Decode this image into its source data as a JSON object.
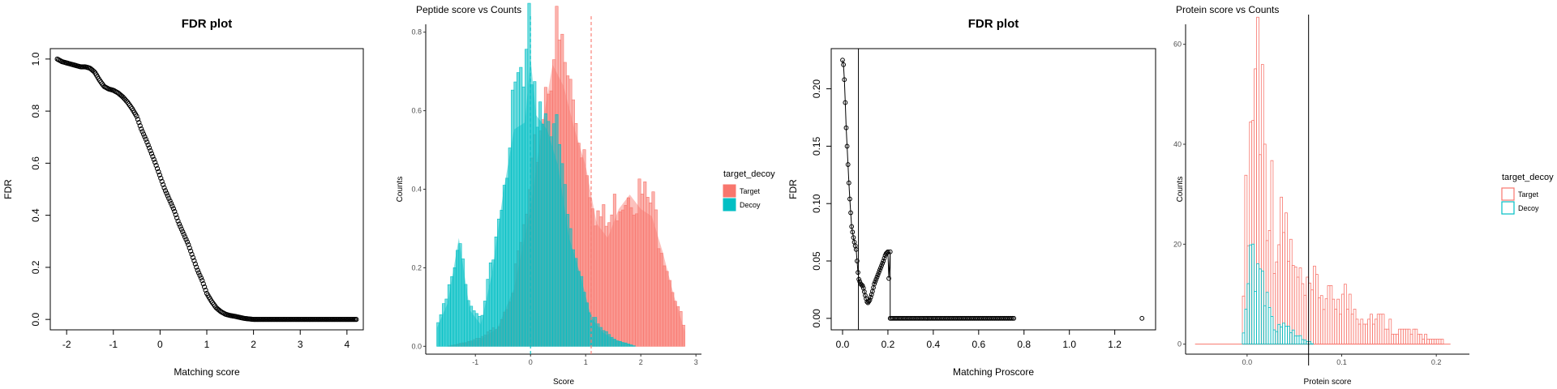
{
  "colors": {
    "target": "#F8766D",
    "decoy": "#00BFC4",
    "axis": "#000000",
    "grey": "#4d4d4d"
  },
  "chart_data": [
    {
      "id": "fdr1",
      "type": "scatter",
      "title": "FDR plot",
      "xlabel": "Matching score",
      "ylabel": "FDR",
      "xlim": [
        -2.35,
        4.35
      ],
      "ylim": [
        -0.04,
        1.04
      ],
      "xticks": [
        "-2",
        "-1",
        "0",
        "1",
        "2",
        "3",
        "4"
      ],
      "yticks": [
        "0.0",
        "0.2",
        "0.4",
        "0.6",
        "0.8",
        "1.0"
      ],
      "x": [
        -2.2,
        -2.1,
        -2.0,
        -1.9,
        -1.8,
        -1.7,
        -1.6,
        -1.5,
        -1.4,
        -1.3,
        -1.2,
        -1.1,
        -1.0,
        -0.9,
        -0.8,
        -0.7,
        -0.6,
        -0.5,
        -0.4,
        -0.3,
        -0.2,
        -0.1,
        0.0,
        0.1,
        0.2,
        0.3,
        0.4,
        0.5,
        0.6,
        0.7,
        0.8,
        0.9,
        1.0,
        1.1,
        1.2,
        1.3,
        1.4,
        1.5,
        1.6,
        1.7,
        1.8,
        1.9,
        2.0,
        2.5,
        3.0,
        3.5,
        4.0,
        4.2
      ],
      "y": [
        1.0,
        0.99,
        0.985,
        0.98,
        0.975,
        0.97,
        0.97,
        0.965,
        0.95,
        0.92,
        0.895,
        0.885,
        0.88,
        0.87,
        0.855,
        0.835,
        0.81,
        0.78,
        0.73,
        0.69,
        0.645,
        0.6,
        0.55,
        0.5,
        0.46,
        0.42,
        0.37,
        0.33,
        0.29,
        0.24,
        0.19,
        0.15,
        0.1,
        0.07,
        0.045,
        0.03,
        0.02,
        0.015,
        0.012,
        0.008,
        0.004,
        0.002,
        0.0,
        0.0,
        0.0,
        0.0,
        0.0,
        0.0
      ]
    },
    {
      "id": "pep",
      "type": "bar",
      "title": "Peptide score vs Counts",
      "xlabel": "Score",
      "ylabel": "Counts",
      "xlim": [
        -1.9,
        3.1
      ],
      "ylim": [
        -0.02,
        0.82
      ],
      "xticks": [
        "-1",
        "0",
        "1",
        "2",
        "3"
      ],
      "yticks": [
        "0.0",
        "0.2",
        "0.4",
        "0.6",
        "0.8"
      ],
      "vlines": [
        {
          "x": 0.0,
          "series": "Decoy"
        },
        {
          "x": 1.1,
          "series": "Target"
        }
      ],
      "legend_title": "target_decoy",
      "legend_position": "right",
      "series": [
        {
          "name": "Target",
          "x": [
            -1.8,
            -1.5,
            -1.2,
            -0.9,
            -0.6,
            -0.3,
            0.0,
            0.2,
            0.4,
            0.6,
            0.8,
            1.0,
            1.2,
            1.4,
            1.6,
            1.8,
            2.0,
            2.2,
            2.4,
            2.6,
            2.8
          ],
          "y": [
            0.0,
            0.0,
            0.01,
            0.02,
            0.05,
            0.16,
            0.38,
            0.6,
            0.78,
            0.72,
            0.6,
            0.5,
            0.34,
            0.3,
            0.38,
            0.42,
            0.38,
            0.36,
            0.26,
            0.14,
            0.04
          ]
        },
        {
          "name": "Decoy",
          "x": [
            -1.7,
            -1.5,
            -1.3,
            -1.1,
            -0.9,
            -0.7,
            -0.5,
            -0.3,
            -0.1,
            0.0,
            0.1,
            0.3,
            0.5,
            0.7,
            0.9,
            1.1,
            1.3,
            1.5,
            1.7,
            1.9
          ],
          "y": [
            0.05,
            0.12,
            0.3,
            0.1,
            0.06,
            0.2,
            0.42,
            0.6,
            0.62,
            0.8,
            0.64,
            0.6,
            0.5,
            0.3,
            0.2,
            0.08,
            0.04,
            0.02,
            0.01,
            0.0
          ]
        }
      ]
    },
    {
      "id": "fdr2",
      "type": "scatter",
      "title": "FDR plot",
      "xlabel": "Matching Proscore",
      "ylabel": "FDR",
      "xlim": [
        -0.05,
        1.38
      ],
      "ylim": [
        -0.01,
        0.235
      ],
      "xticks": [
        "0.0",
        "0.2",
        "0.4",
        "0.6",
        "0.8",
        "1.0",
        "1.2"
      ],
      "yticks": [
        "0.00",
        "0.05",
        "0.10",
        "0.15",
        "0.20"
      ],
      "vlines": [
        {
          "x": 0.07
        }
      ],
      "x": [
        0.0,
        0.005,
        0.01,
        0.015,
        0.02,
        0.03,
        0.04,
        0.05,
        0.06,
        0.07,
        0.08,
        0.09,
        0.1,
        0.11,
        0.12,
        0.13,
        0.14,
        0.15,
        0.16,
        0.17,
        0.18,
        0.19,
        0.2,
        0.21,
        0.25,
        0.3,
        0.4,
        0.5,
        0.6,
        0.7,
        0.76,
        1.32
      ],
      "y": [
        0.225,
        0.22,
        0.2,
        0.17,
        0.15,
        0.11,
        0.08,
        0.068,
        0.06,
        0.035,
        0.03,
        0.028,
        0.02,
        0.013,
        0.016,
        0.022,
        0.03,
        0.035,
        0.04,
        0.045,
        0.05,
        0.056,
        0.058,
        0.0,
        0.0,
        0.0,
        0.0,
        0.0,
        0.0,
        0.0,
        0.0,
        0.0
      ]
    },
    {
      "id": "prot",
      "type": "bar",
      "title": "Protein score vs Counts",
      "xlabel": "Protein score",
      "ylabel": "Counts",
      "xlim": [
        -0.065,
        0.235
      ],
      "ylim": [
        -2,
        64
      ],
      "xticks": [
        "0.0",
        "0.1",
        "0.2"
      ],
      "yticks": [
        "0",
        "20",
        "40",
        "60"
      ],
      "vlines": [
        {
          "x": 0.065
        }
      ],
      "legend_title": "target_decoy",
      "legend_position": "right",
      "series": [
        {
          "name": "Target",
          "x": [
            -0.055,
            -0.01,
            0.0,
            0.005,
            0.01,
            0.015,
            0.02,
            0.025,
            0.03,
            0.035,
            0.04,
            0.045,
            0.05,
            0.055,
            0.06,
            0.065,
            0.075,
            0.085,
            0.1,
            0.12,
            0.14,
            0.16,
            0.18,
            0.2,
            0.215
          ],
          "y": [
            0,
            0,
            28,
            47,
            61,
            52,
            38,
            30,
            24,
            20,
            25,
            18,
            14,
            12,
            10,
            9,
            12,
            8,
            10,
            6,
            5,
            3,
            2,
            1,
            0
          ]
        },
        {
          "name": "Decoy",
          "x": [
            -0.005,
            0.0,
            0.005,
            0.01,
            0.015,
            0.02,
            0.025,
            0.03,
            0.04,
            0.05,
            0.06,
            0.07
          ],
          "y": [
            0,
            10,
            18,
            13,
            11,
            8,
            6,
            4,
            3,
            2,
            1,
            0
          ]
        }
      ]
    }
  ]
}
